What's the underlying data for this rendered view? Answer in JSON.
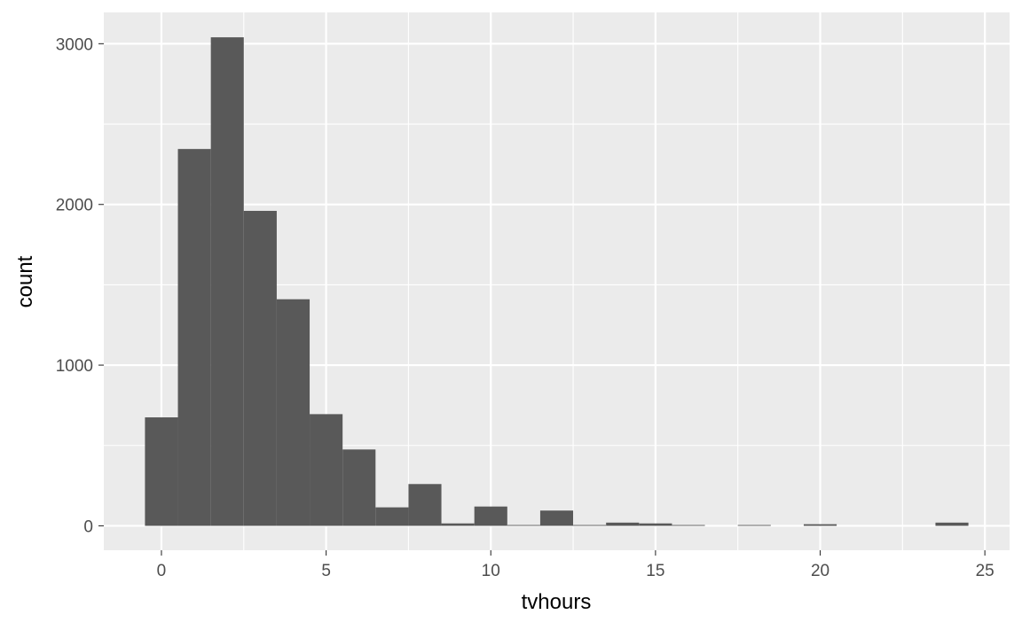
{
  "chart_data": {
    "type": "histogram",
    "xlabel": "tvhours",
    "ylabel": "count",
    "binwidth": 1,
    "xlim": [
      -1.75,
      25.75
    ],
    "ylim": [
      -152,
      3195
    ],
    "x_ticks": [
      0,
      5,
      10,
      15,
      20,
      25
    ],
    "y_ticks": [
      0,
      1000,
      2000,
      3000
    ],
    "bins": [
      {
        "x": 0,
        "count": 675
      },
      {
        "x": 1,
        "count": 2345
      },
      {
        "x": 2,
        "count": 3040
      },
      {
        "x": 3,
        "count": 1960
      },
      {
        "x": 4,
        "count": 1410
      },
      {
        "x": 5,
        "count": 695
      },
      {
        "x": 6,
        "count": 475
      },
      {
        "x": 7,
        "count": 115
      },
      {
        "x": 8,
        "count": 260
      },
      {
        "x": 9,
        "count": 15
      },
      {
        "x": 10,
        "count": 120
      },
      {
        "x": 11,
        "count": 5
      },
      {
        "x": 12,
        "count": 95
      },
      {
        "x": 13,
        "count": 5
      },
      {
        "x": 14,
        "count": 20
      },
      {
        "x": 15,
        "count": 15
      },
      {
        "x": 16,
        "count": 5
      },
      {
        "x": 17,
        "count": 0
      },
      {
        "x": 18,
        "count": 5
      },
      {
        "x": 19,
        "count": 0
      },
      {
        "x": 20,
        "count": 10
      },
      {
        "x": 21,
        "count": 0
      },
      {
        "x": 22,
        "count": 0
      },
      {
        "x": 23,
        "count": 0
      },
      {
        "x": 24,
        "count": 20
      }
    ],
    "grid": true,
    "bar_color": "#595959",
    "panel_color": "#EBEBEB",
    "grid_color": "#FFFFFF"
  }
}
